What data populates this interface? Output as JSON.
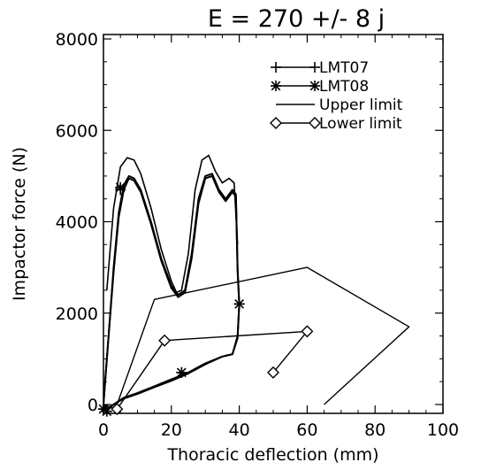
{
  "chart_data": {
    "type": "line",
    "title": "E = 270 +/- 8 j",
    "xlabel": "Thoracic deflection (mm)",
    "ylabel": "Impactor force (N)",
    "xlim": [
      0,
      100
    ],
    "ylim": [
      0,
      8000
    ],
    "x_ticks": [
      0,
      20,
      40,
      60,
      80,
      100
    ],
    "y_ticks": [
      0,
      2000,
      4000,
      6000,
      8000
    ],
    "x_tick_labels": [
      "0",
      "20",
      "40",
      "60",
      "80",
      "100"
    ],
    "y_tick_labels": [
      "0",
      "2000",
      "4000",
      "6000",
      "8000"
    ],
    "grid": false,
    "legend_position": "top-right",
    "series": [
      {
        "name": "LMT07",
        "marker": "plus",
        "color": "#000000",
        "points": [
          [
            0,
            0
          ],
          [
            0.5,
            500
          ],
          [
            1.5,
            1500
          ],
          [
            3,
            3000
          ],
          [
            4.5,
            4200
          ],
          [
            6,
            4800
          ],
          [
            7.5,
            5000
          ],
          [
            9,
            4950
          ],
          [
            11,
            4700
          ],
          [
            14,
            4000
          ],
          [
            17,
            3200
          ],
          [
            20,
            2600
          ],
          [
            22,
            2400
          ],
          [
            24,
            2500
          ],
          [
            26,
            3300
          ],
          [
            28,
            4500
          ],
          [
            30,
            5000
          ],
          [
            32,
            5050
          ],
          [
            34,
            4700
          ],
          [
            36,
            4500
          ],
          [
            38,
            4700
          ],
          [
            39,
            4600
          ],
          [
            39.5,
            3000
          ],
          [
            40,
            2200
          ],
          [
            39.5,
            1500
          ],
          [
            38,
            1100
          ],
          [
            35,
            1050
          ],
          [
            30,
            900
          ],
          [
            25,
            700
          ],
          [
            20,
            550
          ],
          [
            15,
            400
          ],
          [
            10,
            250
          ],
          [
            6,
            150
          ],
          [
            3,
            0
          ],
          [
            1,
            -100
          ],
          [
            0,
            0
          ]
        ],
        "marker_points": [
          [
            23,
            700
          ],
          [
            40,
            2200
          ],
          [
            5,
            4700
          ],
          [
            0,
            -100
          ]
        ]
      },
      {
        "name": "LMT08",
        "marker": "asterisk",
        "color": "#000000",
        "points": [
          [
            0,
            0
          ],
          [
            0.5,
            500
          ],
          [
            1.5,
            1500
          ],
          [
            3,
            2900
          ],
          [
            4.5,
            4100
          ],
          [
            6,
            4700
          ],
          [
            7.5,
            4950
          ],
          [
            9,
            4900
          ],
          [
            11,
            4650
          ],
          [
            14,
            3950
          ],
          [
            17,
            3150
          ],
          [
            20,
            2550
          ],
          [
            22,
            2350
          ],
          [
            24,
            2450
          ],
          [
            26,
            3200
          ],
          [
            28,
            4400
          ],
          [
            30,
            4950
          ],
          [
            32,
            5000
          ],
          [
            34,
            4650
          ],
          [
            36,
            4450
          ],
          [
            38,
            4650
          ],
          [
            39,
            4550
          ],
          [
            39.5,
            2900
          ],
          [
            40,
            2200
          ],
          [
            39.5,
            1450
          ],
          [
            38,
            1100
          ],
          [
            35,
            1050
          ],
          [
            30,
            880
          ],
          [
            25,
            680
          ],
          [
            20,
            520
          ],
          [
            15,
            380
          ],
          [
            10,
            230
          ],
          [
            6,
            130
          ],
          [
            3,
            0
          ],
          [
            1,
            -100
          ],
          [
            0,
            0
          ]
        ],
        "marker_points": [
          [
            23,
            700
          ],
          [
            40,
            2200
          ],
          [
            5,
            4750
          ],
          [
            0,
            -100
          ],
          [
            1,
            -150
          ]
        ]
      },
      {
        "name": "Upper limit",
        "marker": "none",
        "color": "#000000",
        "points": [
          [
            4,
            0
          ],
          [
            15,
            2300
          ],
          [
            60,
            3000
          ],
          [
            90,
            1700
          ],
          [
            65,
            0
          ]
        ]
      },
      {
        "name": "Lower limit",
        "marker": "diamond",
        "color": "#000000",
        "points": [
          [
            0,
            0
          ],
          [
            4,
            -100
          ],
          [
            18,
            1400
          ],
          [
            60,
            1600
          ],
          [
            50,
            700
          ]
        ],
        "marker_points": [
          [
            4,
            -100
          ],
          [
            18,
            1400
          ],
          [
            60,
            1600
          ],
          [
            50,
            700
          ]
        ]
      }
    ],
    "envelope_outer": [
      [
        1,
        2500
      ],
      [
        3,
        4300
      ],
      [
        5,
        5200
      ],
      [
        7,
        5400
      ],
      [
        9,
        5350
      ],
      [
        11,
        5050
      ],
      [
        14,
        4300
      ],
      [
        17,
        3400
      ],
      [
        20,
        2700
      ],
      [
        21.5,
        2450
      ],
      [
        23,
        2500
      ],
      [
        25,
        3300
      ],
      [
        27,
        4700
      ],
      [
        29,
        5350
      ],
      [
        31,
        5450
      ],
      [
        33,
        5100
      ],
      [
        35,
        4850
      ],
      [
        37,
        4950
      ],
      [
        38.5,
        4850
      ],
      [
        39.5,
        3500
      ]
    ]
  }
}
